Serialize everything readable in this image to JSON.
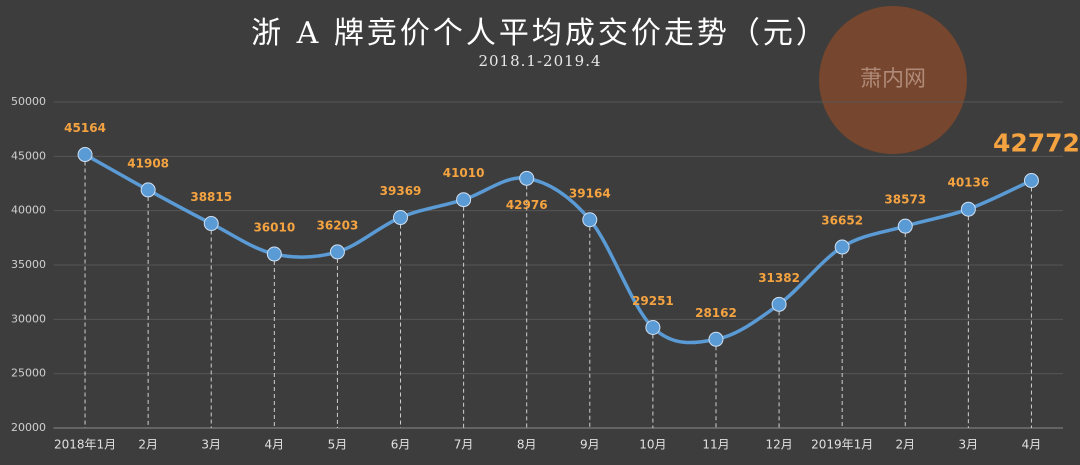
{
  "chart_data": {
    "type": "line",
    "title": "浙 A 牌竞价个人平均成交价走势（元）",
    "subtitle": "2018.1-2019.4",
    "watermark": "萧内网",
    "categories": [
      "2018年1月",
      "2月",
      "3月",
      "4月",
      "5月",
      "6月",
      "7月",
      "8月",
      "9月",
      "10月",
      "11月",
      "12月",
      "2019年1月",
      "2月",
      "3月",
      "4月"
    ],
    "values": [
      45164,
      41908,
      38815,
      36010,
      36203,
      39369,
      41010,
      42976,
      39164,
      29251,
      28162,
      31382,
      36652,
      38573,
      40136,
      42772
    ],
    "color": "#5b9bd5",
    "label_color": "#f4a340",
    "ylim": [
      20000,
      50000
    ],
    "yticks": [
      20000,
      25000,
      30000,
      35000,
      40000,
      45000,
      50000
    ],
    "grid": true
  }
}
